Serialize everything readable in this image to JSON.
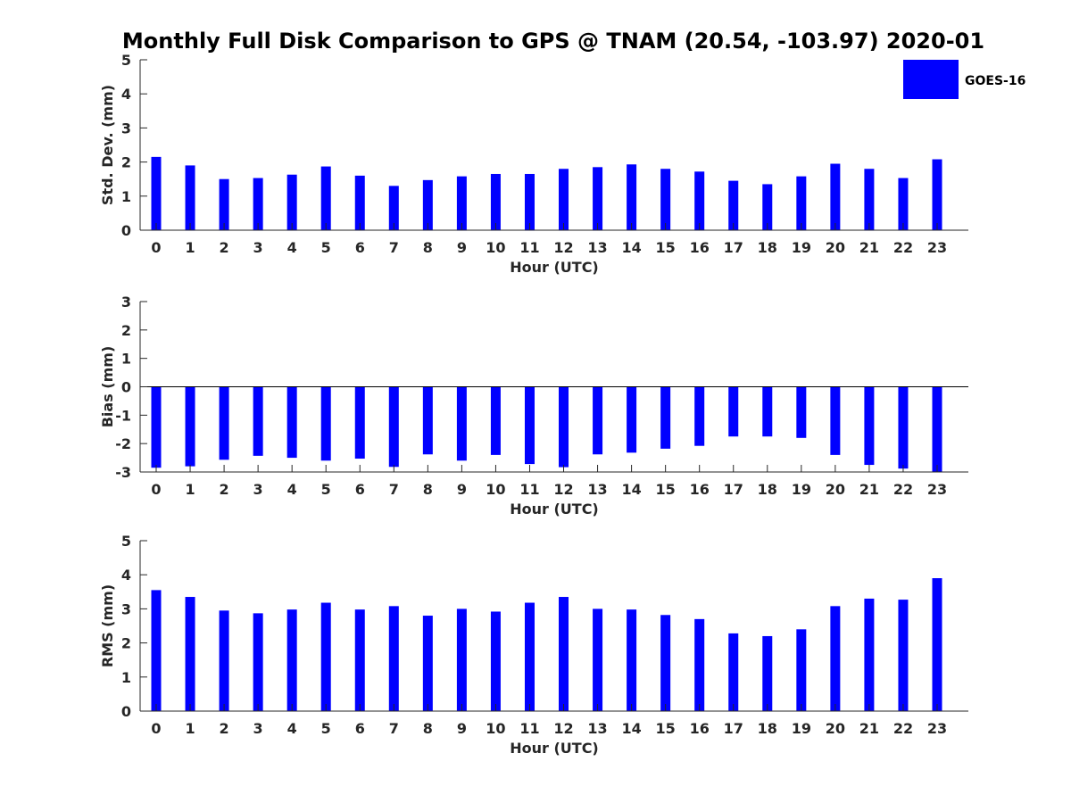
{
  "chart_data": {
    "title": "Monthly Full Disk Comparison to GPS @ TNAM (20.54, -103.97) 2020-01",
    "legend": {
      "entries": [
        "GOES-16"
      ],
      "placement": "top-right"
    },
    "series_color": "#0000ff",
    "panels": [
      {
        "type": "bar",
        "ylabel": "Std. Dev. (mm)",
        "xlabel": "Hour (UTC)",
        "ylim": [
          0,
          5
        ],
        "yticks": [
          0,
          1,
          2,
          3,
          4,
          5
        ],
        "categories": [
          "0",
          "1",
          "2",
          "3",
          "4",
          "5",
          "6",
          "7",
          "8",
          "9",
          "10",
          "11",
          "12",
          "13",
          "14",
          "15",
          "16",
          "17",
          "18",
          "19",
          "20",
          "21",
          "22",
          "23"
        ],
        "series": [
          {
            "name": "GOES-16",
            "values": [
              2.15,
              1.9,
              1.5,
              1.53,
              1.63,
              1.87,
              1.6,
              1.3,
              1.47,
              1.58,
              1.65,
              1.65,
              1.8,
              1.85,
              1.93,
              1.8,
              1.72,
              1.45,
              1.35,
              1.58,
              1.95,
              1.8,
              1.53,
              2.08
            ]
          }
        ]
      },
      {
        "type": "bar",
        "ylabel": "Bias (mm)",
        "xlabel": "Hour (UTC)",
        "ylim": [
          -3,
          3
        ],
        "yticks": [
          -3,
          -2,
          -1,
          0,
          1,
          2,
          3
        ],
        "categories": [
          "0",
          "1",
          "2",
          "3",
          "4",
          "5",
          "6",
          "7",
          "8",
          "9",
          "10",
          "11",
          "12",
          "13",
          "14",
          "15",
          "16",
          "17",
          "18",
          "19",
          "20",
          "21",
          "22",
          "23"
        ],
        "series": [
          {
            "name": "GOES-16",
            "values": [
              -2.85,
              -2.8,
              -2.57,
              -2.43,
              -2.5,
              -2.6,
              -2.53,
              -2.82,
              -2.38,
              -2.6,
              -2.4,
              -2.72,
              -2.83,
              -2.38,
              -2.32,
              -2.18,
              -2.08,
              -1.75,
              -1.75,
              -1.8,
              -2.4,
              -2.75,
              -2.88,
              -3.0
            ]
          }
        ]
      },
      {
        "type": "bar",
        "ylabel": "RMS (mm)",
        "xlabel": "Hour (UTC)",
        "ylim": [
          0,
          5
        ],
        "yticks": [
          0,
          1,
          2,
          3,
          4,
          5
        ],
        "categories": [
          "0",
          "1",
          "2",
          "3",
          "4",
          "5",
          "6",
          "7",
          "8",
          "9",
          "10",
          "11",
          "12",
          "13",
          "14",
          "15",
          "16",
          "17",
          "18",
          "19",
          "20",
          "21",
          "22",
          "23"
        ],
        "series": [
          {
            "name": "GOES-16",
            "values": [
              3.55,
              3.35,
              2.95,
              2.87,
              2.98,
              3.18,
              2.98,
              3.08,
              2.8,
              3.0,
              2.92,
              3.18,
              3.35,
              3.0,
              2.98,
              2.82,
              2.7,
              2.28,
              2.2,
              2.4,
              3.08,
              3.3,
              3.27,
              3.9
            ]
          }
        ]
      }
    ]
  }
}
